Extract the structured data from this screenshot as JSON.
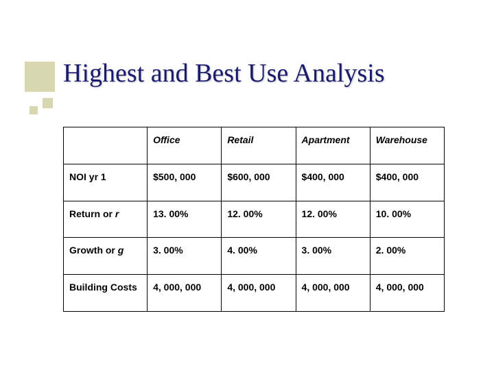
{
  "title": "Highest and Best Use Analysis",
  "accent_color": "#d8d8b0",
  "title_color": "#1a1a6e",
  "table": {
    "columns": [
      "Office",
      "Retail",
      "Apartment",
      "Warehouse"
    ],
    "rows": [
      {
        "label": "NOI yr 1",
        "label_italic_part": "",
        "cells": [
          "$500, 000",
          "$600, 000",
          "$400, 000",
          "$400, 000"
        ]
      },
      {
        "label": "Return or ",
        "label_italic_part": "r",
        "cells": [
          "13. 00%",
          "12. 00%",
          "12. 00%",
          "10. 00%"
        ]
      },
      {
        "label": "Growth or ",
        "label_italic_part": "g",
        "cells": [
          "3. 00%",
          "4. 00%",
          "3. 00%",
          "2. 00%"
        ]
      },
      {
        "label": "Building Costs",
        "label_italic_part": "",
        "cells": [
          "4, 000, 000",
          "4, 000, 000",
          "4, 000, 000",
          "4, 000, 000"
        ]
      }
    ],
    "border_color": "#000000",
    "header_fontsize": 14,
    "cell_fontsize": 14,
    "background_color": "#ffffff"
  }
}
